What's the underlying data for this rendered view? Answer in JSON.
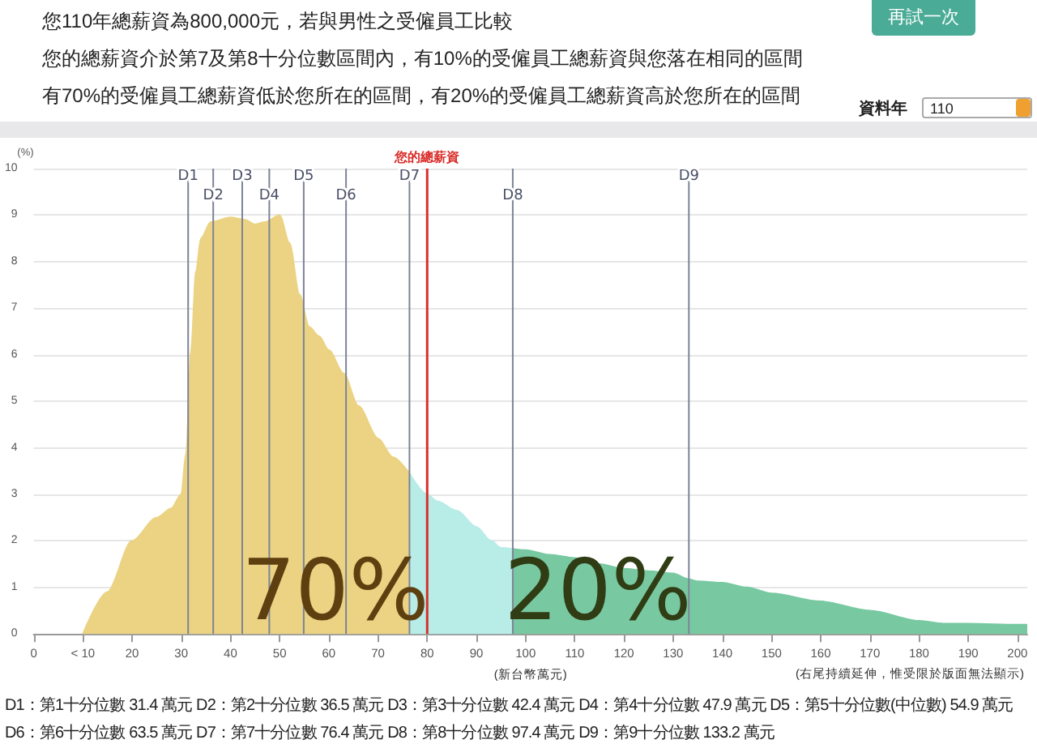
{
  "chart_data": {
    "type": "area",
    "title": "您110年總薪資為800,000元，若與男性之受僱員工比較",
    "subtitle": "您的總薪資介於第7及第8十分位數區間內，有10%的受僱員工總薪資與您落在相同的區間",
    "xlabel": "(新台幣萬元)",
    "ylabel": "(%)",
    "annotations": [
      "有70%的受僱員工總薪資低於您所在的區間，有20%的受僱員工總薪資高於您所在的區間",
      "再試一次",
      "資料年",
      "110",
      "(右尾持續延伸，惟受限於版面無法顯示)",
      "D1：第1十分位數 31.4 萬元  D2：第2十分位數 36.5 萬元  D3：第3十分位數 42.4 萬元  D4：第4十分位數 47.9 萬元  D5：第5十分位數(中位數) 54.9 萬元",
      "D6：第6十分位數 63.5 萬元  D7：第7十分位數 76.4 萬元  D8：第8十分位數 97.4 萬元  D9：第9十分位數 133.2 萬元",
      "70%",
      "20%"
    ],
    "series": [
      {
        "color": "#ebd383",
        "x": [
          10,
          15,
          20,
          25,
          28,
          30,
          31,
          32,
          33,
          34,
          36,
          40,
          43,
          45,
          47,
          50,
          52,
          54,
          56,
          58,
          60,
          63,
          66,
          70,
          73,
          76.4
        ],
        "values": [
          0,
          0.9,
          2,
          2.5,
          2.7,
          3,
          3.9,
          6.1,
          7.8,
          8.5,
          8.85,
          8.95,
          8.9,
          8.8,
          8.85,
          9,
          8.4,
          7.3,
          6.6,
          6.4,
          6.1,
          5.6,
          4.9,
          4.2,
          3.8,
          3.45
        ]
      },
      {
        "color": "#b8ece7",
        "x": [
          76.4,
          80,
          82,
          86,
          90,
          93,
          95,
          97.4
        ],
        "values": [
          3.45,
          3,
          2.85,
          2.65,
          2.3,
          2,
          1.85,
          1.83
        ]
      },
      {
        "color": "#78c9a2",
        "x": [
          97.4,
          100,
          105,
          110,
          115,
          120,
          125,
          130,
          133,
          135,
          140,
          145,
          150,
          160,
          170,
          180,
          185,
          190,
          200,
          202
        ],
        "values": [
          1.83,
          1.8,
          1.7,
          1.63,
          1.5,
          1.4,
          1.35,
          1.3,
          1.18,
          1.13,
          1.1,
          1,
          0.87,
          0.7,
          0.5,
          0.28,
          0.22,
          0.22,
          0.2,
          0.2
        ]
      }
    ],
    "xlim": [
      0,
      202
    ],
    "xticks": [
      0,
      {
        "value": 10,
        "label": "< 10"
      },
      20,
      30,
      40,
      50,
      60,
      70,
      80,
      90,
      100,
      110,
      120,
      130,
      140,
      150,
      160,
      170,
      180,
      190,
      200
    ],
    "ylim": [
      0,
      10
    ],
    "yticks": [
      0,
      1,
      2,
      3,
      4,
      5,
      6,
      7,
      8,
      9,
      10
    ],
    "grid": "y",
    "ref_lines": [
      {
        "axis": "x",
        "value": 31.4,
        "label": "D1",
        "color": "#7d8497"
      },
      {
        "axis": "x",
        "value": 36.5,
        "label": "D2",
        "color": "#7d8497"
      },
      {
        "axis": "x",
        "value": 42.4,
        "label": "D3",
        "color": "#7d8497"
      },
      {
        "axis": "x",
        "value": 47.9,
        "label": "D4",
        "color": "#7d8497"
      },
      {
        "axis": "x",
        "value": 54.9,
        "label": "D5",
        "color": "#7d8497"
      },
      {
        "axis": "x",
        "value": 63.5,
        "label": "D6",
        "color": "#7d8497"
      },
      {
        "axis": "x",
        "value": 76.4,
        "label": "D7",
        "color": "#7d8497"
      },
      {
        "axis": "x",
        "value": 97.4,
        "label": "D8",
        "color": "#7d8497"
      },
      {
        "axis": "x",
        "value": 133.2,
        "label": "D9",
        "color": "#7d8497"
      },
      {
        "axis": "x",
        "value": 80,
        "label": "您的總薪資",
        "color": "#d9302c"
      }
    ]
  }
}
